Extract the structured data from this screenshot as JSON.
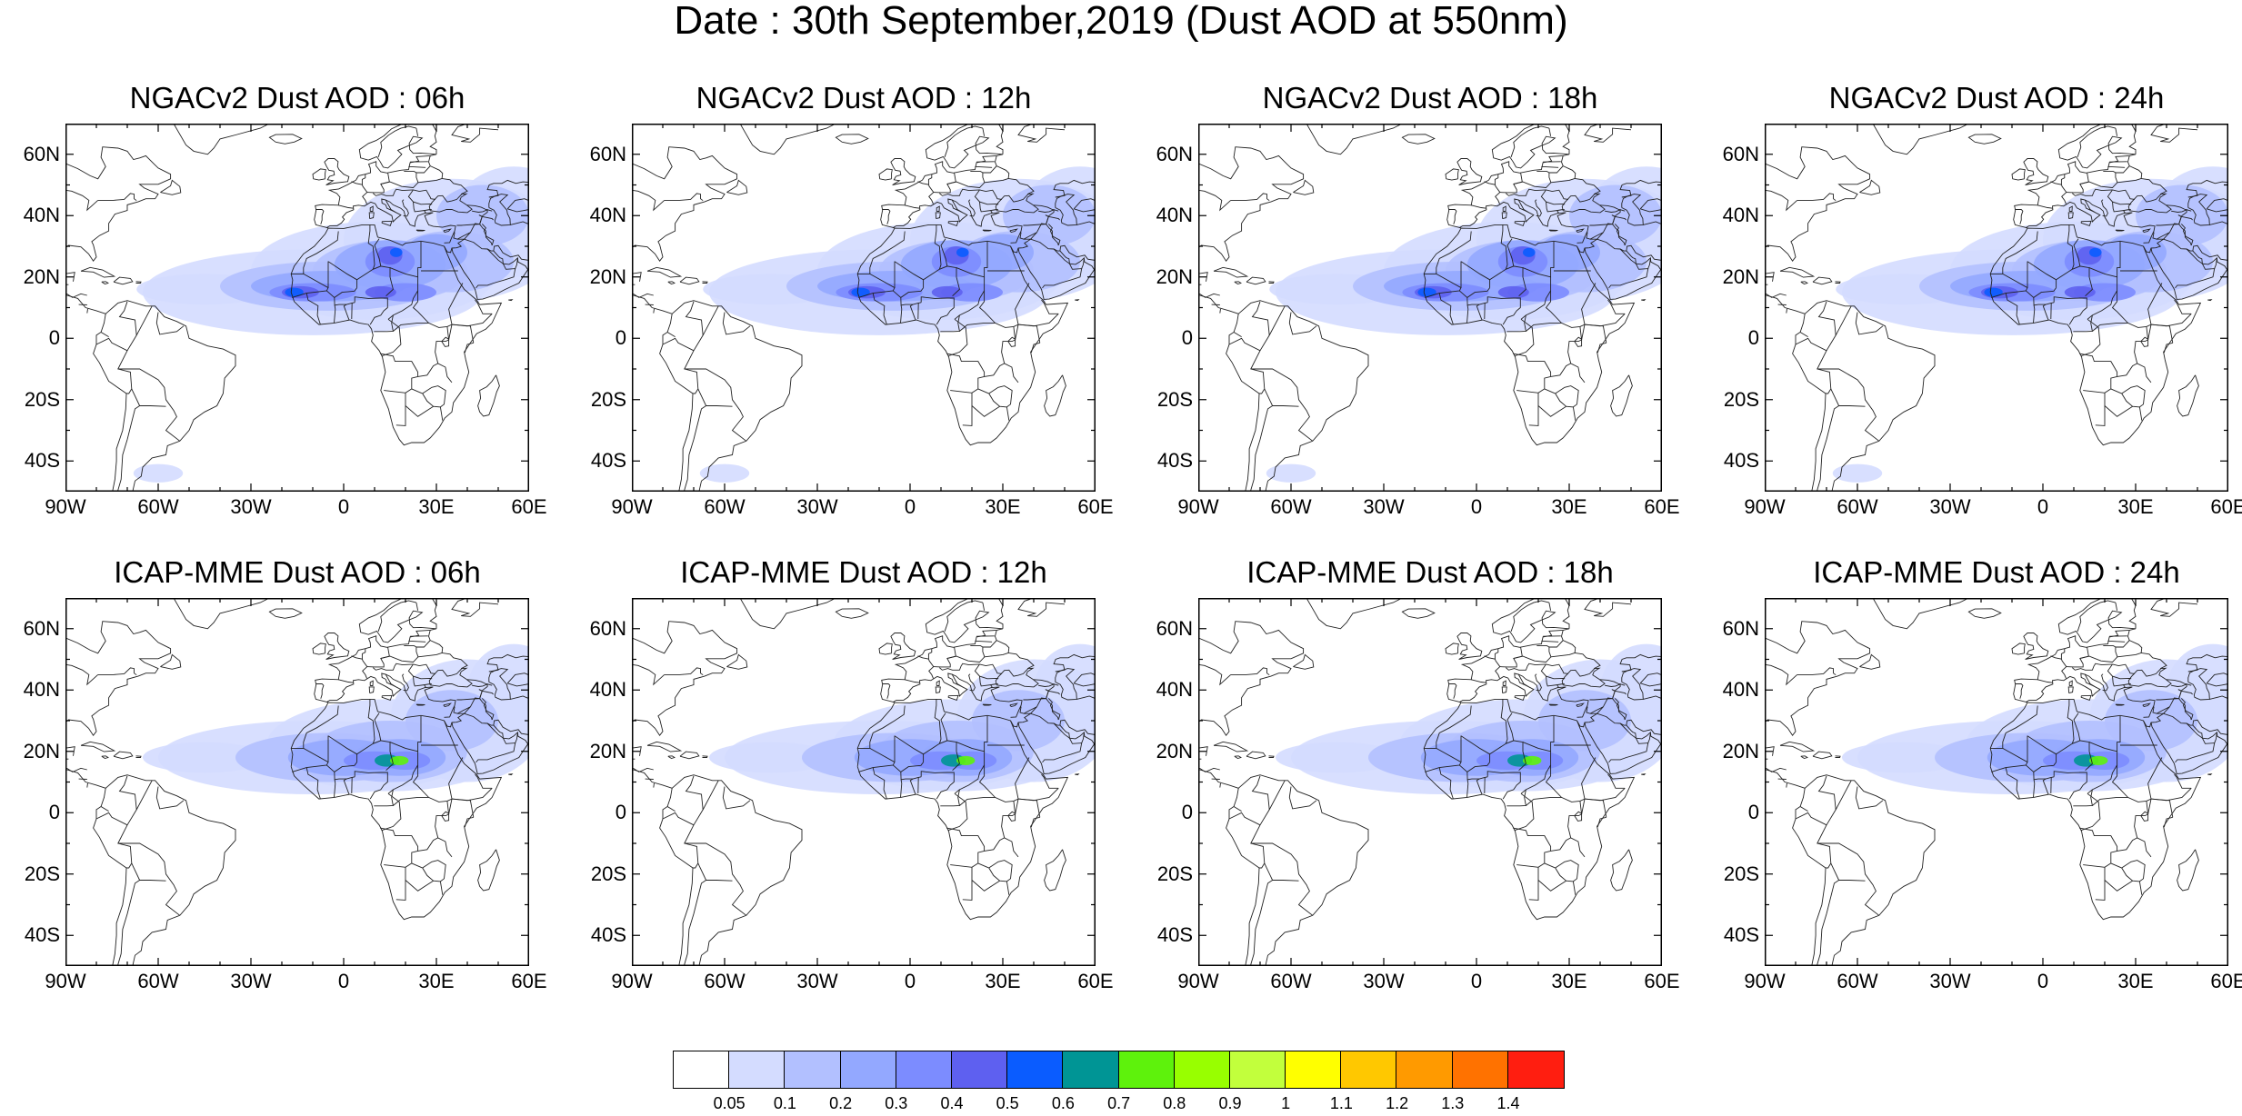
{
  "title": "Date : 30th September,2019 (Dust AOD at 550nm)",
  "axes": {
    "lat_labels": [
      "60N",
      "40N",
      "20N",
      "0",
      "20S",
      "40S"
    ],
    "lat_values": [
      60,
      40,
      20,
      0,
      -20,
      -40
    ],
    "lon_labels": [
      "90W",
      "60W",
      "30W",
      "0",
      "30E",
      "60E"
    ],
    "lon_values": [
      -90,
      -60,
      -30,
      0,
      30,
      60
    ],
    "lat_range": [
      -50,
      70
    ],
    "lon_range": [
      -90,
      60
    ]
  },
  "panels": [
    {
      "title": "NGACv2 Dust AOD : 06h",
      "model": "NGACv2",
      "hour": "06h"
    },
    {
      "title": "NGACv2 Dust AOD : 12h",
      "model": "NGACv2",
      "hour": "12h"
    },
    {
      "title": "NGACv2 Dust AOD : 18h",
      "model": "NGACv2",
      "hour": "18h"
    },
    {
      "title": "NGACv2 Dust AOD : 24h",
      "model": "NGACv2",
      "hour": "24h"
    },
    {
      "title": "ICAP-MME Dust AOD : 06h",
      "model": "ICAP-MME",
      "hour": "06h"
    },
    {
      "title": "ICAP-MME Dust AOD : 12h",
      "model": "ICAP-MME",
      "hour": "12h"
    },
    {
      "title": "ICAP-MME Dust AOD : 18h",
      "model": "ICAP-MME",
      "hour": "18h"
    },
    {
      "title": "ICAP-MME Dust AOD : 24h",
      "model": "ICAP-MME",
      "hour": "24h"
    }
  ],
  "colorbar": {
    "labels": [
      "0.05",
      "0.1",
      "0.2",
      "0.3",
      "0.4",
      "0.5",
      "0.6",
      "0.7",
      "0.8",
      "0.9",
      "1",
      "1.1",
      "1.2",
      "1.3",
      "1.4"
    ],
    "colors": [
      "#ffffff",
      "#d4dcff",
      "#b2c0ff",
      "#93a8ff",
      "#7c8cff",
      "#5e60f0",
      "#0a5cff",
      "#009595",
      "#5ef20c",
      "#98ff00",
      "#c2ff3c",
      "#ffff00",
      "#ffc800",
      "#ff9a00",
      "#ff7200",
      "#ff1e10"
    ]
  }
}
